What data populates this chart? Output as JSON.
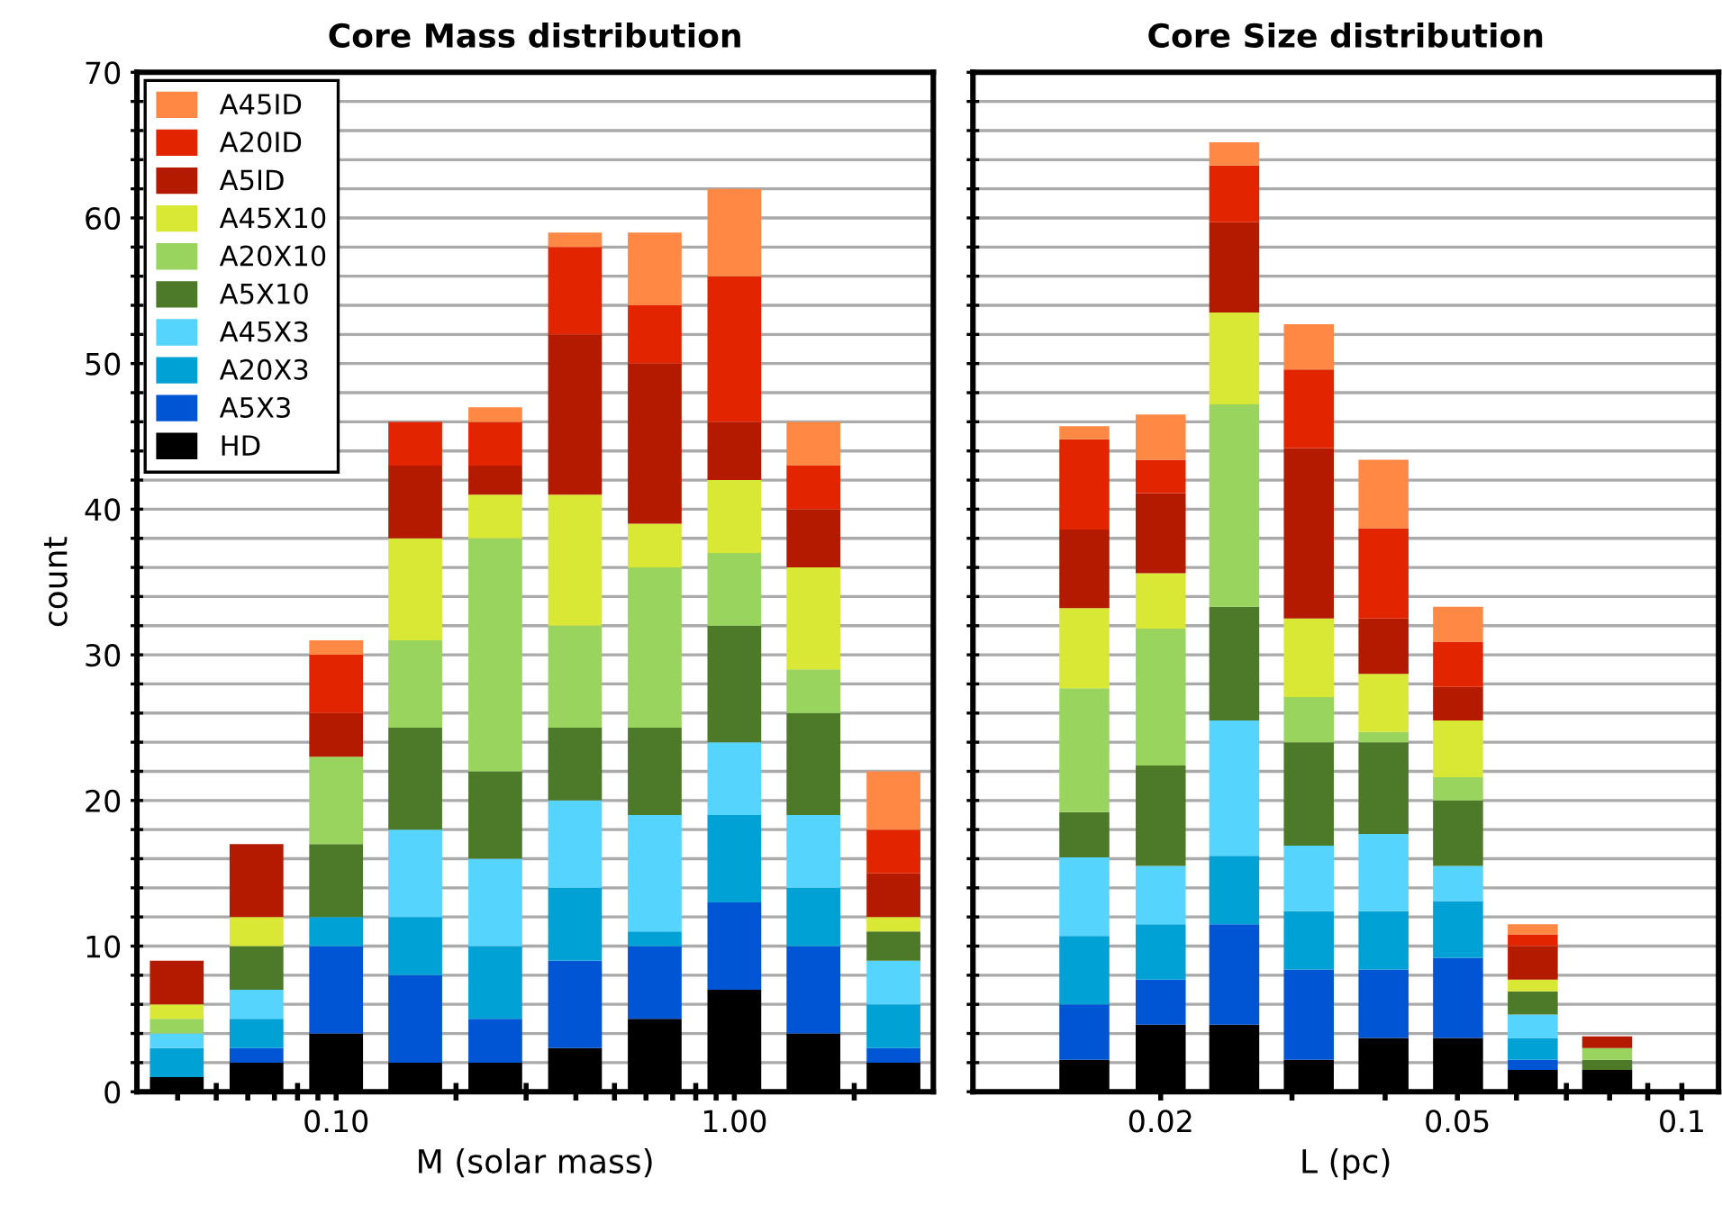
{
  "chart_data": [
    {
      "type": "bar",
      "stacked": true,
      "title": "Core Mass distribution",
      "xlabel": "M (solar mass)",
      "ylabel": "count",
      "log": "x",
      "grid": "y",
      "legend": "top left",
      "x": [
        0.0398,
        0.0631,
        0.1,
        0.158,
        0.251,
        0.398,
        0.631,
        1,
        1.58,
        2.51
      ],
      "xlim": [
        0.0316,
        3.16
      ],
      "xticks": [
        {
          "value": 0.04,
          "label": null
        },
        {
          "value": 0.05,
          "label": null
        },
        {
          "value": 0.06,
          "label": null
        },
        {
          "value": 0.07,
          "label": null
        },
        {
          "value": 0.08,
          "label": null
        },
        {
          "value": 0.09,
          "label": null
        },
        {
          "value": 0.1,
          "label": "0.10"
        },
        {
          "value": 0.2,
          "label": null
        },
        {
          "value": 0.3,
          "label": null
        },
        {
          "value": 0.4,
          "label": null
        },
        {
          "value": 0.5,
          "label": null
        },
        {
          "value": 0.6,
          "label": null
        },
        {
          "value": 0.7,
          "label": null
        },
        {
          "value": 0.8,
          "label": null
        },
        {
          "value": 0.9,
          "label": null
        },
        {
          "value": 1,
          "label": "1.00"
        },
        {
          "value": 2,
          "label": null
        }
      ],
      "ylim": [
        0,
        70
      ],
      "yticks": [
        0,
        {
          "value": 2,
          "label": null
        },
        {
          "value": 4,
          "label": null
        },
        {
          "value": 6,
          "label": null
        },
        {
          "value": 8,
          "label": null
        },
        10,
        {
          "value": 12,
          "label": null
        },
        {
          "value": 14,
          "label": null
        },
        {
          "value": 16,
          "label": null
        },
        {
          "value": 18,
          "label": null
        },
        20,
        {
          "value": 22,
          "label": null
        },
        {
          "value": 24,
          "label": null
        },
        {
          "value": 26,
          "label": null
        },
        {
          "value": 28,
          "label": null
        },
        30,
        {
          "value": 32,
          "label": null
        },
        {
          "value": 34,
          "label": null
        },
        {
          "value": 36,
          "label": null
        },
        {
          "value": 38,
          "label": null
        },
        40,
        {
          "value": 42,
          "label": null
        },
        {
          "value": 44,
          "label": null
        },
        {
          "value": 46,
          "label": null
        },
        {
          "value": 48,
          "label": null
        },
        50,
        {
          "value": 52,
          "label": null
        },
        {
          "value": 54,
          "label": null
        },
        {
          "value": 56,
          "label": null
        },
        {
          "value": 58,
          "label": null
        },
        60,
        {
          "value": 62,
          "label": null
        },
        {
          "value": 64,
          "label": null
        },
        {
          "value": 66,
          "label": null
        },
        {
          "value": 68,
          "label": null
        },
        70
      ],
      "series": [
        {
          "name": "HD",
          "color": "#000000",
          "values": [
            1,
            2,
            4,
            2,
            2,
            3,
            5,
            7,
            4,
            2
          ]
        },
        {
          "name": "A5X3",
          "color": "#0055d4",
          "values": [
            0,
            1,
            6,
            6,
            3,
            6,
            5,
            6,
            6,
            1
          ]
        },
        {
          "name": "A20X3",
          "color": "#00a2d6",
          "values": [
            2,
            2,
            2,
            4,
            5,
            5,
            1,
            6,
            4,
            3
          ]
        },
        {
          "name": "A45X3",
          "color": "#55d4fd",
          "values": [
            1,
            2,
            0,
            6,
            6,
            6,
            8,
            5,
            5,
            3
          ]
        },
        {
          "name": "A5X10",
          "color": "#4d7a29",
          "values": [
            0,
            3,
            5,
            7,
            6,
            5,
            6,
            8,
            7,
            2
          ]
        },
        {
          "name": "A20X10",
          "color": "#98d45e",
          "values": [
            1,
            0,
            6,
            6,
            16,
            7,
            11,
            5,
            3,
            0
          ]
        },
        {
          "name": "A45X10",
          "color": "#d9e835",
          "values": [
            1,
            2,
            0,
            7,
            3,
            9,
            3,
            5,
            7,
            1
          ]
        },
        {
          "name": "A5ID",
          "color": "#b41a00",
          "values": [
            3,
            5,
            3,
            5,
            2,
            11,
            11,
            4,
            4,
            3
          ]
        },
        {
          "name": "A20ID",
          "color": "#e22400",
          "values": [
            0,
            0,
            4,
            3,
            3,
            6,
            4,
            10,
            3,
            3
          ]
        },
        {
          "name": "A45ID",
          "color": "#ff8844",
          "values": [
            0,
            0,
            1,
            0,
            1,
            1,
            5,
            6,
            3,
            4
          ]
        }
      ]
    },
    {
      "type": "bar",
      "stacked": true,
      "title": "Core Size distribution",
      "xlabel": "L (pc)",
      "log": "x",
      "grid": "y",
      "tick_labels": "x",
      "x": [
        0.0158,
        0.02,
        0.0251,
        0.0316,
        0.0398,
        0.0501,
        0.0631,
        0.0794
      ],
      "xlim": [
        0.0112,
        0.112
      ],
      "xticks": [
        {
          "value": 0.02,
          "label": "0.02"
        },
        {
          "value": 0.03,
          "label": null
        },
        {
          "value": 0.04,
          "label": null
        },
        {
          "value": 0.05,
          "label": "0.05"
        },
        {
          "value": 0.06,
          "label": null
        },
        {
          "value": 0.07,
          "label": null
        },
        {
          "value": 0.08,
          "label": null
        },
        {
          "value": 0.09,
          "label": null
        },
        {
          "value": 0.1,
          "label": "0.1"
        }
      ],
      "ylim": [
        0,
        70
      ],
      "yticks": [
        0,
        {
          "value": 2,
          "label": null
        },
        {
          "value": 4,
          "label": null
        },
        {
          "value": 6,
          "label": null
        },
        {
          "value": 8,
          "label": null
        },
        10,
        {
          "value": 12,
          "label": null
        },
        {
          "value": 14,
          "label": null
        },
        {
          "value": 16,
          "label": null
        },
        {
          "value": 18,
          "label": null
        },
        20,
        {
          "value": 22,
          "label": null
        },
        {
          "value": 24,
          "label": null
        },
        {
          "value": 26,
          "label": null
        },
        {
          "value": 28,
          "label": null
        },
        30,
        {
          "value": 32,
          "label": null
        },
        {
          "value": 34,
          "label": null
        },
        {
          "value": 36,
          "label": null
        },
        {
          "value": 38,
          "label": null
        },
        40,
        {
          "value": 42,
          "label": null
        },
        {
          "value": 44,
          "label": null
        },
        {
          "value": 46,
          "label": null
        },
        {
          "value": 48,
          "label": null
        },
        50,
        {
          "value": 52,
          "label": null
        },
        {
          "value": 54,
          "label": null
        },
        {
          "value": 56,
          "label": null
        },
        {
          "value": 58,
          "label": null
        },
        60,
        {
          "value": 62,
          "label": null
        },
        {
          "value": 64,
          "label": null
        },
        {
          "value": 66,
          "label": null
        },
        {
          "value": 68,
          "label": null
        },
        70
      ],
      "series": [
        {
          "color": "#000000",
          "values": [
            2.2,
            4.6,
            4.6,
            2.2,
            3.7,
            3.7,
            1.5,
            1.5
          ]
        },
        {
          "color": "#0055d4",
          "values": [
            3.8,
            3.1,
            6.9,
            6.2,
            4.7,
            5.5,
            0.7,
            0
          ]
        },
        {
          "color": "#00a2d6",
          "values": [
            4.7,
            3.8,
            4.7,
            4.0,
            4.0,
            3.9,
            1.5,
            0
          ]
        },
        {
          "color": "#55d4fd",
          "values": [
            5.4,
            4.0,
            9.3,
            4.5,
            5.3,
            2.4,
            1.6,
            0
          ]
        },
        {
          "color": "#4d7a29",
          "values": [
            3.1,
            6.9,
            7.8,
            7.1,
            6.3,
            4.5,
            1.6,
            0.7
          ]
        },
        {
          "color": "#98d45e",
          "values": [
            8.5,
            9.4,
            13.9,
            3.1,
            0.7,
            1.6,
            0,
            0.8
          ]
        },
        {
          "color": "#d9e835",
          "values": [
            5.5,
            3.8,
            6.3,
            5.4,
            4.0,
            3.9,
            0.8,
            0
          ]
        },
        {
          "color": "#b41a00",
          "values": [
            5.4,
            5.5,
            6.2,
            11.7,
            3.8,
            2.3,
            2.3,
            0.8
          ]
        },
        {
          "color": "#e22400",
          "values": [
            6.2,
            2.3,
            3.9,
            5.4,
            6.2,
            3.1,
            0.8,
            0
          ]
        },
        {
          "color": "#ff8844",
          "values": [
            0.9,
            3.1,
            1.6,
            3.1,
            4.7,
            2.4,
            0.7,
            0
          ]
        }
      ]
    }
  ]
}
